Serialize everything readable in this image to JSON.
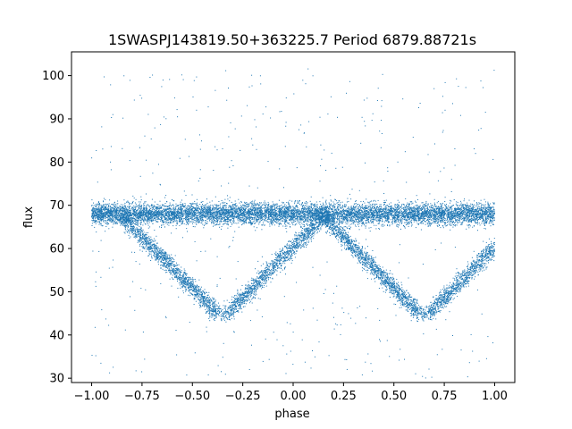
{
  "chart_data": {
    "type": "scatter",
    "title": "1SWASPJ143819.50+363225.7 Period 6879.88721s",
    "xlabel": "phase",
    "ylabel": "flux",
    "xlim": [
      -1.1,
      1.1
    ],
    "ylim": [
      29,
      105.5
    ],
    "xticks": [
      -1.0,
      -0.75,
      -0.5,
      -0.25,
      0.0,
      0.25,
      0.5,
      0.75,
      1.0
    ],
    "xtick_labels": [
      "−1.00",
      "−0.75",
      "−0.50",
      "−0.25",
      "0.00",
      "0.25",
      "0.50",
      "0.75",
      "1.00"
    ],
    "yticks": [
      30,
      40,
      50,
      60,
      70,
      80,
      90,
      100
    ],
    "ytick_labels": [
      "30",
      "40",
      "50",
      "60",
      "70",
      "80",
      "90",
      "100"
    ],
    "grid": false,
    "legend": "none",
    "color": "#1f77b4",
    "series": [
      {
        "description": "phase-folded light curve, dense band plus two V-shaped eclipses",
        "baseline_flux": 68,
        "eclipse_minima": [
          {
            "phase": -0.35,
            "flux": 44.5
          },
          {
            "phase": 0.65,
            "flux": 44.5
          }
        ],
        "eclipse_tops": [
          {
            "phase": -0.85,
            "flux": 68
          },
          {
            "phase": 0.15,
            "flux": 68
          }
        ]
      }
    ]
  }
}
